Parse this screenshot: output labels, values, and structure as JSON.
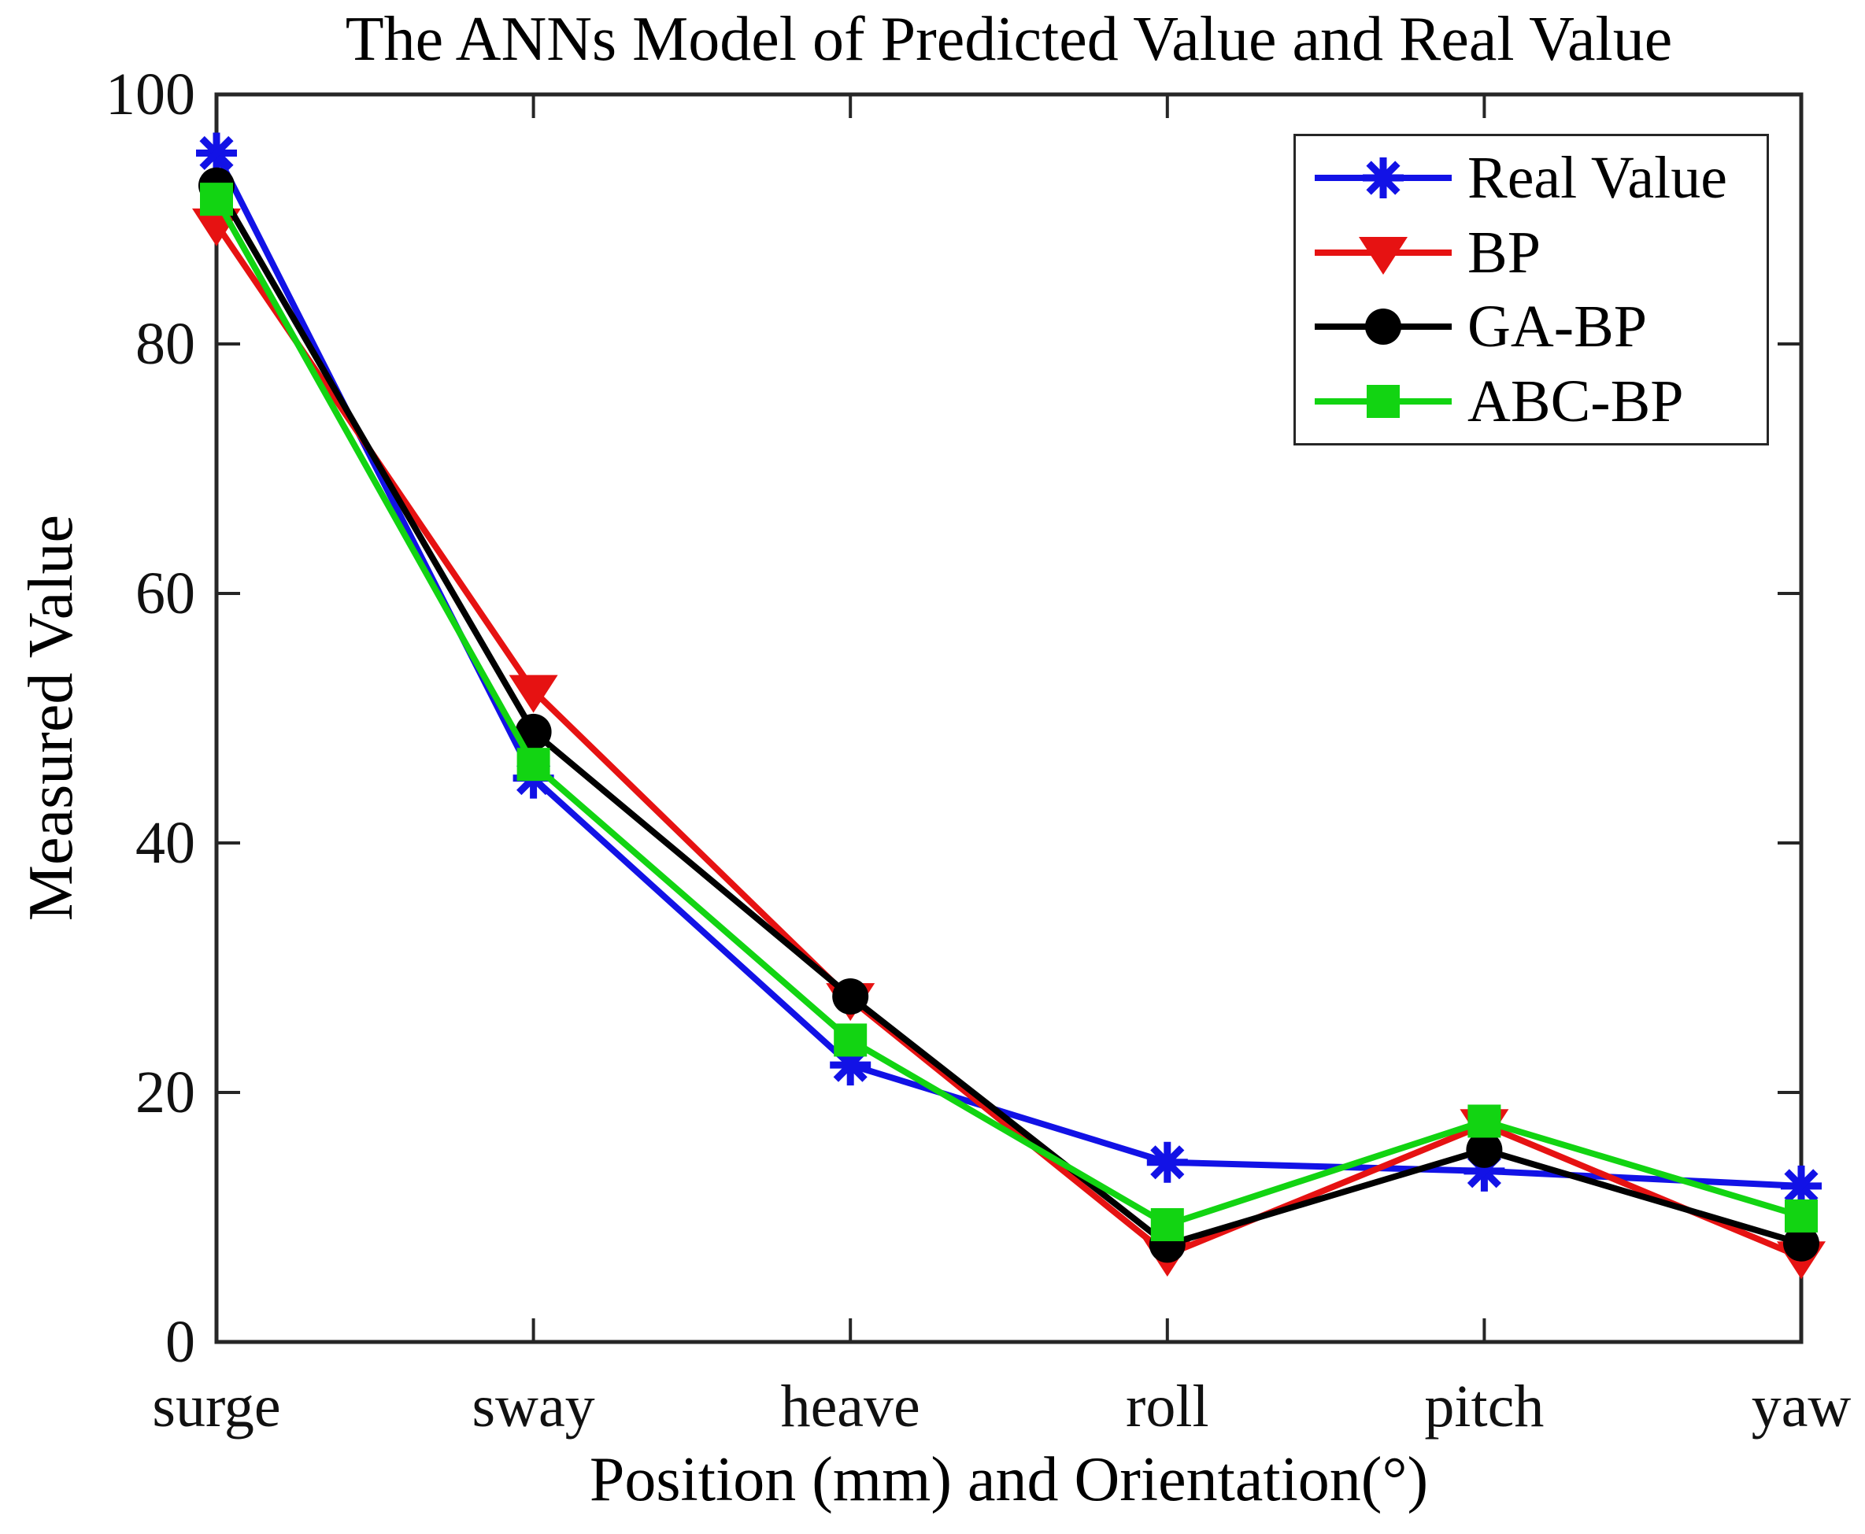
{
  "figure": {
    "background": "#ffffff"
  },
  "chart_data": {
    "type": "line",
    "title": "The ANNs Model of Predicted Value and Real Value",
    "xlabel": "Position (mm) and Orientation(°)",
    "ylabel": "Measured Value",
    "categories": [
      "surge",
      "sway",
      "heave",
      "roll",
      "pitch",
      "yaw"
    ],
    "ylim": [
      0,
      100
    ],
    "yticks": [
      0,
      20,
      40,
      60,
      80,
      100
    ],
    "grid": false,
    "axis_color": "#262626",
    "legend": {
      "position": "top-right",
      "border_color": "#262626"
    },
    "series": [
      {
        "name": "Real Value",
        "color": "#1212e6",
        "marker": "asterisk",
        "values": [
          95.3,
          45.2,
          22.2,
          14.4,
          13.7,
          12.5
        ]
      },
      {
        "name": "BP",
        "color": "#e61212",
        "marker": "triangle-down",
        "values": [
          89.6,
          52.2,
          27.5,
          7.0,
          17.4,
          6.8
        ]
      },
      {
        "name": "GA-BP",
        "color": "#000000",
        "marker": "circle",
        "values": [
          92.7,
          48.9,
          27.7,
          7.8,
          15.4,
          7.9
        ]
      },
      {
        "name": "ABC-BP",
        "color": "#12d412",
        "marker": "square",
        "values": [
          91.6,
          46.3,
          24.2,
          9.4,
          17.7,
          10.1
        ]
      }
    ]
  }
}
